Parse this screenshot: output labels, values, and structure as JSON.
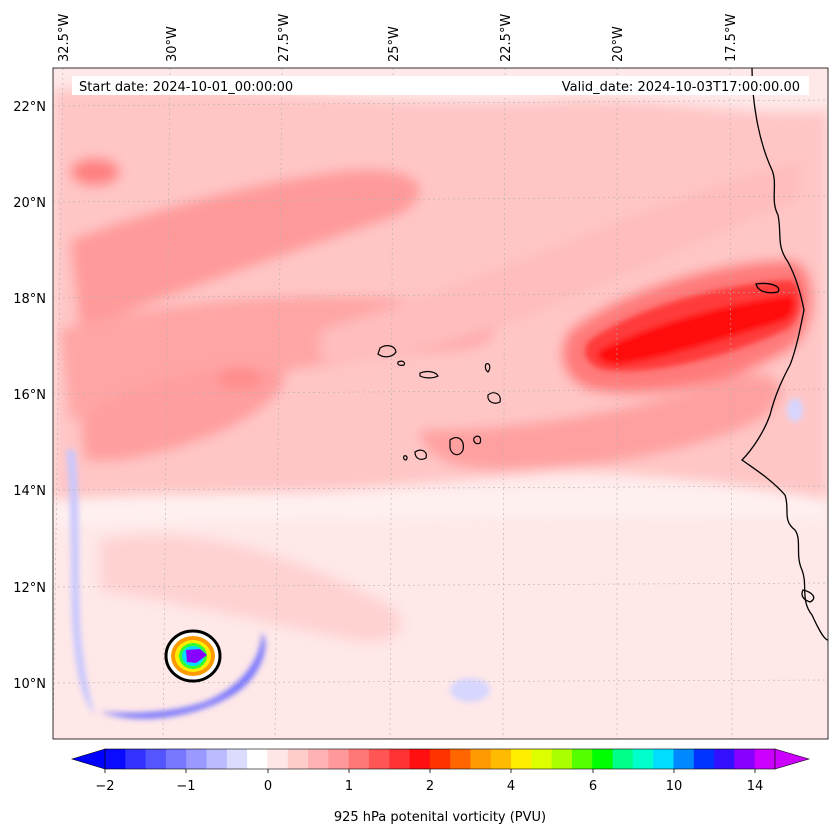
{
  "header": {
    "start_date": "Start date: 2024-10-01_00:00:00",
    "valid_date": "Valid_date: 2024-10-03T17:00:00.00"
  },
  "axes": {
    "lon_ticks": [
      "32.5°W",
      "30°W",
      "27.5°W",
      "25°W",
      "22.5°W",
      "20°W",
      "17.5°W"
    ],
    "lat_ticks": [
      "22°N",
      "20°N",
      "18°N",
      "16°N",
      "14°N",
      "12°N",
      "10°N"
    ]
  },
  "colorbar": {
    "title": "925 hPa potenital vorticity (PVU)",
    "tick_labels": [
      "−2",
      "−1",
      "0",
      "1",
      "2",
      "4",
      "6",
      "10",
      "14"
    ],
    "colors": [
      "#0a0aff",
      "#3333ff",
      "#5555ff",
      "#7777ff",
      "#9999ff",
      "#bbbbff",
      "#dcdcff",
      "#ffffff",
      "#ffe6e6",
      "#ffcccc",
      "#ffb3b3",
      "#ff9999",
      "#ff7777",
      "#ff5555",
      "#ff3333",
      "#ff0f0f",
      "#ff3300",
      "#ff6600",
      "#ff9900",
      "#ffbb00",
      "#ffee00",
      "#ddff00",
      "#aaff00",
      "#55ff00",
      "#00ff00",
      "#00ff88",
      "#00ffcc",
      "#00ddff",
      "#0088ff",
      "#0033ff",
      "#3311ff",
      "#8800ff",
      "#cc00ff"
    ],
    "extend_low_color": "#0000ff",
    "extend_high_color": "#cc00ff"
  },
  "map": {
    "background_color": "#ffe8e8",
    "coastline_color": "#000000",
    "vortex_center_color": "#8800ff"
  }
}
